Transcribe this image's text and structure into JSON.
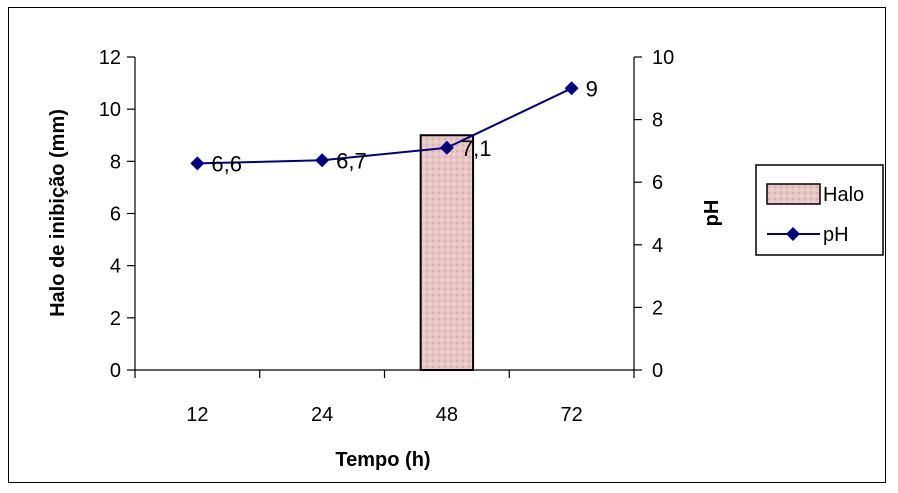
{
  "chart_data": {
    "type": "bar+line",
    "categories": [
      "12",
      "24",
      "48",
      "72"
    ],
    "xlabel": "Tempo (h)",
    "ylabel_left": "Halo de inibição (mm)",
    "ylabel_right": "pH",
    "ylim_left": [
      0,
      12
    ],
    "yticks_left": [
      0,
      2,
      4,
      6,
      8,
      10,
      12
    ],
    "ylim_right": [
      0,
      10
    ],
    "yticks_right": [
      0,
      2,
      4,
      6,
      8,
      10
    ],
    "grid": false,
    "legend_position": "right",
    "series": [
      {
        "name": "Halo",
        "type": "bar",
        "axis": "left",
        "values": [
          0,
          0,
          9,
          0
        ],
        "color": "#e8c4c4"
      },
      {
        "name": "pH",
        "type": "line",
        "axis": "right",
        "values": [
          6.6,
          6.7,
          7.1,
          9
        ],
        "data_labels": [
          "6,6",
          "6,7",
          "7,1",
          "9"
        ],
        "color": "#000080"
      }
    ]
  }
}
